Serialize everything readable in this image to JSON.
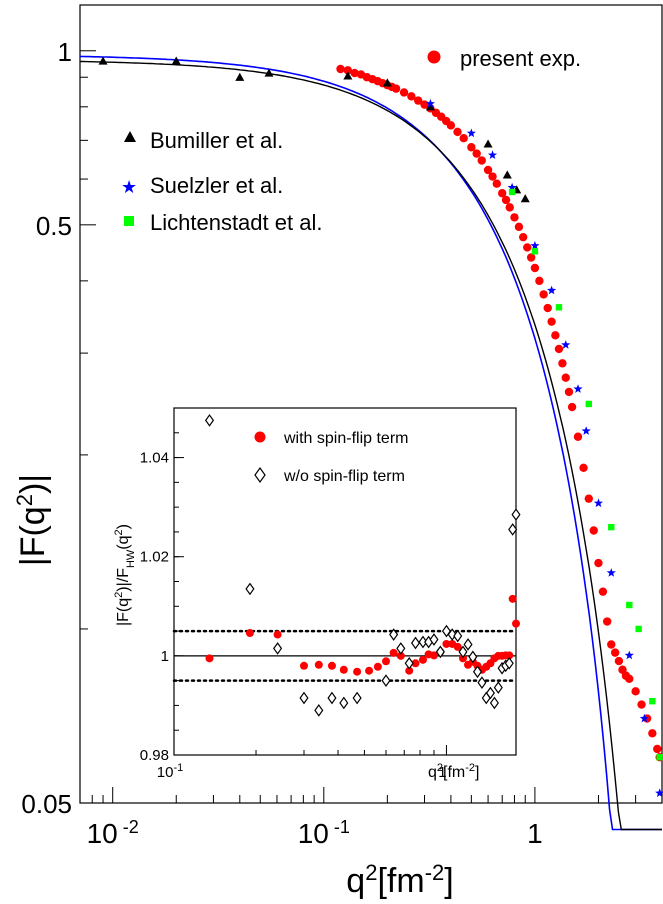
{
  "chart_data": [
    {
      "type": "scatter",
      "xscale": "log",
      "yscale": "log",
      "xlim": [
        0.007,
        4.0
      ],
      "ylim": [
        0.05,
        1.2
      ],
      "xlabel_main": "q",
      "xlabel_sup": "2",
      "xlabel_rest": "[fm",
      "xlabel_sup2": "-2",
      "xlabel_end": "]",
      "ylabel_pre": "|F(q",
      "ylabel_sup": "2",
      "ylabel_post": ")|",
      "xticks": [
        {
          "value": 0.01,
          "base": "10",
          "exp": "-2"
        },
        {
          "value": 0.1,
          "base": "10",
          "exp": "-1"
        },
        {
          "value": 1,
          "base": "1",
          "exp": ""
        }
      ],
      "yticks": [
        {
          "value": 1,
          "label": "1"
        },
        {
          "value": 0.5,
          "label": "0.5"
        },
        {
          "value": 0.05,
          "label": "0.05"
        }
      ],
      "legend": [
        {
          "label": "present exp.",
          "marker": "circle",
          "color": "#ff0000"
        },
        {
          "label": "Bumiller et al.",
          "marker": "triangle",
          "color": "#000000"
        },
        {
          "label": "Suelzler et al.",
          "marker": "star",
          "color": "#0000ff"
        },
        {
          "label": "Lichtenstadt et al.",
          "marker": "square",
          "color": "#00ff00"
        }
      ],
      "grid": false,
      "series": [
        {
          "name": "present exp.",
          "marker": "circle",
          "color": "#ff0000",
          "points": [
            [
              0.12,
              0.93
            ],
            [
              0.13,
              0.925
            ],
            [
              0.14,
              0.915
            ],
            [
              0.15,
              0.91
            ],
            [
              0.16,
              0.9
            ],
            [
              0.17,
              0.893
            ],
            [
              0.18,
              0.886
            ],
            [
              0.19,
              0.879
            ],
            [
              0.2,
              0.872
            ],
            [
              0.21,
              0.866
            ],
            [
              0.22,
              0.86
            ],
            [
              0.24,
              0.847
            ],
            [
              0.26,
              0.834
            ],
            [
              0.28,
              0.82
            ],
            [
              0.3,
              0.807
            ],
            [
              0.32,
              0.795
            ],
            [
              0.34,
              0.781
            ],
            [
              0.36,
              0.769
            ],
            [
              0.38,
              0.756
            ],
            [
              0.4,
              0.743
            ],
            [
              0.43,
              0.724
            ],
            [
              0.46,
              0.706
            ],
            [
              0.5,
              0.681
            ],
            [
              0.53,
              0.664
            ],
            [
              0.56,
              0.646
            ],
            [
              0.6,
              0.622
            ],
            [
              0.63,
              0.606
            ],
            [
              0.66,
              0.589
            ],
            [
              0.7,
              0.567
            ],
            [
              0.73,
              0.552
            ],
            [
              0.76,
              0.536
            ],
            [
              0.8,
              0.515
            ],
            [
              0.84,
              0.496
            ],
            [
              0.88,
              0.476
            ],
            [
              0.92,
              0.457
            ],
            [
              0.96,
              0.439
            ],
            [
              1.0,
              0.421
            ],
            [
              1.05,
              0.4
            ],
            [
              1.1,
              0.379
            ],
            [
              1.15,
              0.359
            ],
            [
              1.2,
              0.34
            ],
            [
              1.25,
              0.322
            ],
            [
              1.3,
              0.305
            ],
            [
              1.35,
              0.288
            ],
            [
              1.4,
              0.272
            ],
            [
              1.45,
              0.257
            ],
            [
              1.5,
              0.242
            ],
            [
              1.6,
              0.215
            ],
            [
              1.7,
              0.19
            ],
            [
              1.8,
              0.168
            ],
            [
              1.9,
              0.148
            ],
            [
              2.0,
              0.13
            ],
            [
              2.1,
              0.116
            ],
            [
              2.2,
              0.103
            ],
            [
              2.3,
              0.094
            ],
            [
              2.4,
              0.091
            ],
            [
              2.5,
              0.088
            ],
            [
              2.6,
              0.085
            ],
            [
              2.7,
              0.083
            ],
            [
              2.8,
              0.082
            ],
            [
              3.0,
              0.078
            ],
            [
              3.2,
              0.074
            ],
            [
              3.4,
              0.07
            ],
            [
              3.6,
              0.066
            ],
            [
              3.8,
              0.062
            ],
            [
              3.9,
              0.06
            ]
          ]
        },
        {
          "name": "Bumiller et al.",
          "marker": "triangle",
          "color": "#000000",
          "points": [
            [
              0.009,
              0.96
            ],
            [
              0.02,
              0.96
            ],
            [
              0.04,
              0.9
            ],
            [
              0.055,
              0.915
            ],
            [
              0.13,
              0.905
            ],
            [
              0.2,
              0.88
            ],
            [
              0.32,
              0.8
            ],
            [
              0.6,
              0.69
            ],
            [
              0.74,
              0.61
            ],
            [
              0.82,
              0.575
            ],
            [
              0.9,
              0.555
            ]
          ]
        },
        {
          "name": "Suelzler et al.",
          "marker": "star",
          "color": "#0000ff",
          "points": [
            [
              0.32,
              0.81
            ],
            [
              0.5,
              0.72
            ],
            [
              0.63,
              0.66
            ],
            [
              0.78,
              0.58
            ],
            [
              1.0,
              0.46
            ],
            [
              1.2,
              0.385
            ],
            [
              1.4,
              0.31
            ],
            [
              1.6,
              0.26
            ],
            [
              1.75,
              0.22
            ],
            [
              2.0,
              0.165
            ],
            [
              2.3,
              0.125
            ],
            [
              2.8,
              0.09
            ],
            [
              3.3,
              0.07
            ],
            [
              3.9,
              0.052
            ]
          ]
        },
        {
          "name": "Lichtenstadt et al.",
          "marker": "square",
          "color": "#00ff00",
          "points": [
            [
              0.78,
              0.57
            ],
            [
              1.0,
              0.45
            ],
            [
              1.3,
              0.36
            ],
            [
              1.8,
              0.245
            ],
            [
              2.3,
              0.15
            ],
            [
              2.8,
              0.11
            ],
            [
              3.1,
              0.1
            ],
            [
              3.6,
              0.075
            ],
            [
              3.9,
              0.06
            ]
          ]
        }
      ]
    },
    {
      "type": "scatter",
      "xscale": "log",
      "xlim": [
        0.1,
        1.8
      ],
      "ylim": [
        0.98,
        1.05
      ],
      "xlabel_main": "q",
      "xlabel_sup": "2",
      "xlabel_rest": "[fm",
      "xlabel_sup2": "-2",
      "xlabel_end": "]",
      "ylabel_a": "|F(q",
      "ylabel_sup": "2",
      "ylabel_b": ")|/F",
      "ylabel_sub": "HW",
      "ylabel_c": "(q",
      "ylabel_sup2": "2",
      "ylabel_d": ")",
      "xticks": [
        {
          "value": 0.1,
          "base": "10",
          "exp": "-1"
        },
        {
          "value": 1,
          "base": "1",
          "exp": ""
        }
      ],
      "yticks": [
        {
          "value": 0.98,
          "label": "0.98"
        },
        {
          "value": 1.0,
          "label": "1"
        },
        {
          "value": 1.02,
          "label": "1.02"
        },
        {
          "value": 1.04,
          "label": "1.04"
        }
      ],
      "reference_line": 1.0,
      "dotted_lines": [
        1.005,
        0.995
      ],
      "legend": [
        {
          "label": "with spin-flip term",
          "marker": "circle",
          "color": "#ff0000"
        },
        {
          "label": "w/o spin-flip term",
          "marker": "diamond",
          "color": "#000000"
        }
      ],
      "series": [
        {
          "name": "with spin-flip term",
          "marker": "circle",
          "color": "#ff0000",
          "points": [
            [
              0.135,
              0.9995
            ],
            [
              0.19,
              1.0046
            ],
            [
              0.24,
              1.0043
            ],
            [
              0.3,
              0.998
            ],
            [
              0.34,
              0.9982
            ],
            [
              0.38,
              0.998
            ],
            [
              0.42,
              0.9972
            ],
            [
              0.47,
              0.9968
            ],
            [
              0.52,
              0.997
            ],
            [
              0.56,
              0.9978
            ],
            [
              0.6,
              0.9989
            ],
            [
              0.64,
              1.0006
            ],
            [
              0.68,
              1.0
            ],
            [
              0.73,
              0.997
            ],
            [
              0.77,
              0.9985
            ],
            [
              0.82,
              0.9992
            ],
            [
              0.86,
              1.0003
            ],
            [
              0.9,
              1.0001
            ],
            [
              0.95,
              1.0008
            ],
            [
              1.0,
              1.0024
            ],
            [
              1.05,
              1.0024
            ],
            [
              1.1,
              1.0018
            ],
            [
              1.15,
              0.9995
            ],
            [
              1.2,
              0.9982
            ],
            [
              1.25,
              0.9988
            ],
            [
              1.3,
              0.998
            ],
            [
              1.35,
              0.9972
            ],
            [
              1.4,
              0.9978
            ],
            [
              1.45,
              0.9985
            ],
            [
              1.5,
              0.9995
            ],
            [
              1.55,
              1.0
            ],
            [
              1.6,
              1.0
            ],
            [
              1.65,
              1.0001
            ],
            [
              1.7,
              1.0001
            ],
            [
              1.75,
              1.0115
            ],
            [
              1.8,
              1.0065
            ]
          ]
        },
        {
          "name": "w/o spin-flip term",
          "marker": "diamond",
          "color": "#000000",
          "points": [
            [
              0.135,
              1.0475
            ],
            [
              0.19,
              1.0135
            ],
            [
              0.24,
              1.0015
            ],
            [
              0.3,
              0.9915
            ],
            [
              0.34,
              0.989
            ],
            [
              0.38,
              0.9915
            ],
            [
              0.42,
              0.9905
            ],
            [
              0.47,
              0.9915
            ],
            [
              0.6,
              0.995
            ],
            [
              0.64,
              1.0043
            ],
            [
              0.68,
              1.0015
            ],
            [
              0.73,
              0.9985
            ],
            [
              0.77,
              1.0026
            ],
            [
              0.82,
              1.0028
            ],
            [
              0.86,
              1.0028
            ],
            [
              0.9,
              1.0033
            ],
            [
              0.95,
              1.0008
            ],
            [
              1.0,
              1.005
            ],
            [
              1.05,
              1.0043
            ],
            [
              1.1,
              1.004
            ],
            [
              1.15,
              1.0008
            ],
            [
              1.2,
              1.0023
            ],
            [
              1.25,
              0.9998
            ],
            [
              1.3,
              0.9968
            ],
            [
              1.35,
              0.9946
            ],
            [
              1.4,
              0.9915
            ],
            [
              1.45,
              0.9925
            ],
            [
              1.5,
              0.9905
            ],
            [
              1.55,
              0.9936
            ],
            [
              1.6,
              0.9975
            ],
            [
              1.65,
              0.998
            ],
            [
              1.7,
              0.9985
            ],
            [
              1.75,
              1.0255
            ],
            [
              1.8,
              1.0285
            ]
          ]
        }
      ]
    }
  ]
}
